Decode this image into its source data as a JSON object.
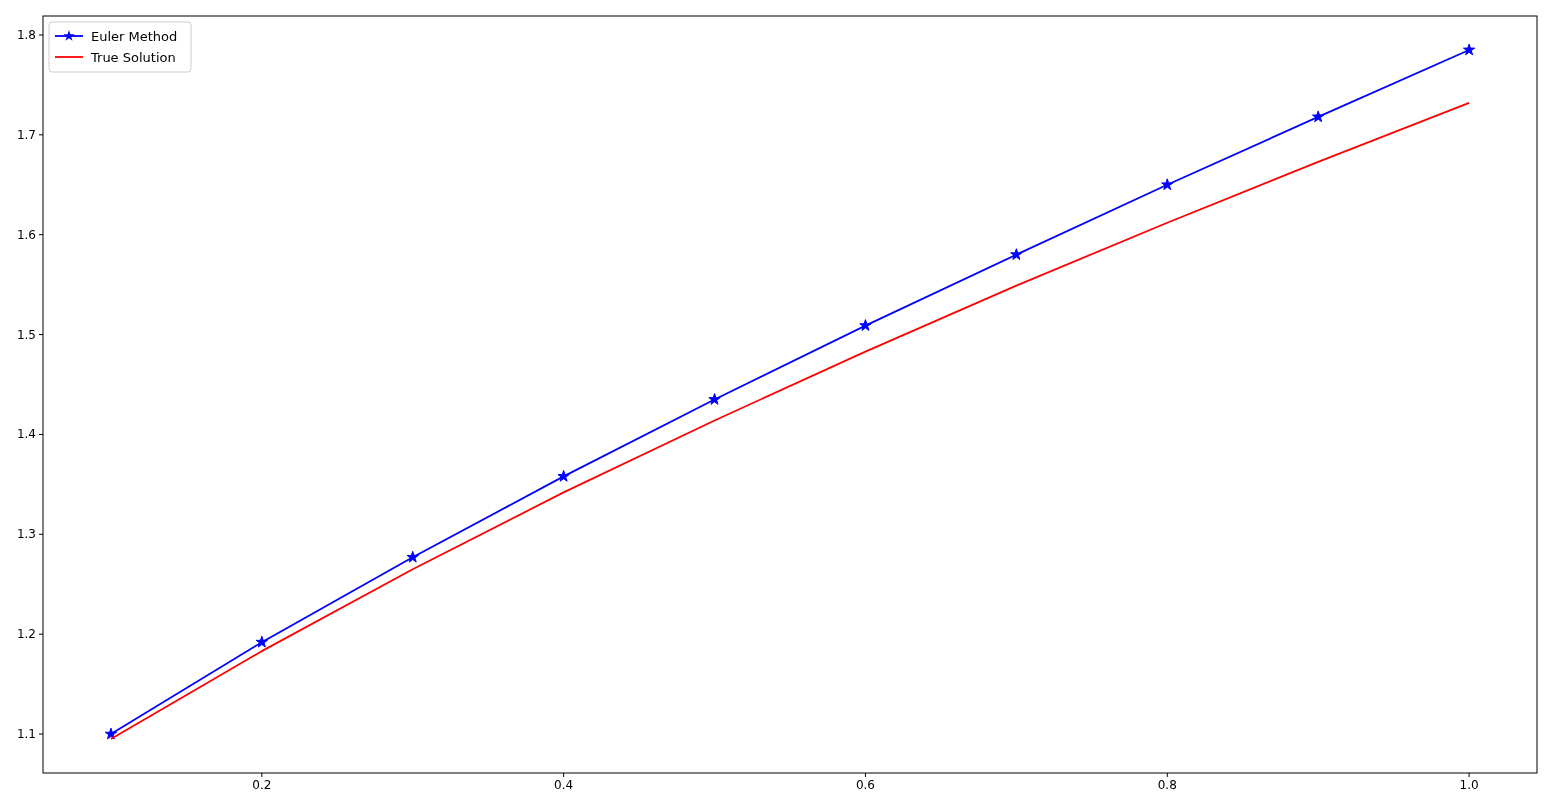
{
  "chart_data": {
    "type": "line",
    "x": [
      0.1,
      0.2,
      0.3,
      0.4,
      0.5,
      0.6,
      0.7,
      0.8,
      0.9,
      1.0
    ],
    "series": [
      {
        "name": "Euler Method",
        "color": "#0000ff",
        "marker": "star",
        "values": [
          1.1,
          1.192,
          1.277,
          1.358,
          1.435,
          1.509,
          1.58,
          1.65,
          1.718,
          1.785
        ]
      },
      {
        "name": "True Solution",
        "color": "#ff0000",
        "marker": "none",
        "values": [
          1.095,
          1.183,
          1.265,
          1.342,
          1.414,
          1.483,
          1.549,
          1.612,
          1.673,
          1.732
        ]
      }
    ],
    "xlim": [
      0.055,
      1.045
    ],
    "ylim": [
      1.061,
      1.819
    ],
    "xticks": [
      0.2,
      0.4,
      0.6,
      0.8,
      {
        "value": 1.0,
        "label": "1.0"
      }
    ],
    "yticks": [
      1.1,
      1.2,
      1.3,
      1.4,
      1.5,
      1.6,
      1.7,
      1.8
    ],
    "legend": "top left",
    "grid": false,
    "line_style": "solid"
  }
}
